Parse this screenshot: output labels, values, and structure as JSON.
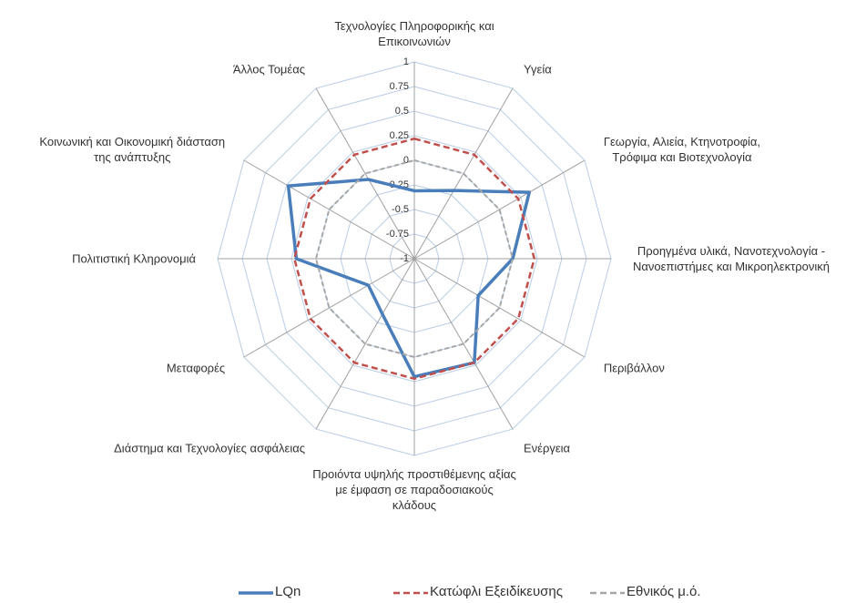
{
  "chart_data": {
    "type": "radar",
    "categories": [
      "Τεχνολογίες Πληροφορικής και\nΕπικοινωνιών",
      "Υγεία",
      "Γεωργία, Αλιεία, Κτηνοτροφία,\nΤρόφιμα και Βιοτεχνολογία",
      "Προηγμένα υλικά, Νανοτεχνολογία -\nΝανοεπιστήμες και Μικροηλεκτρονική",
      "Περιβάλλον",
      "Ενέργεια",
      "Προιόντα υψηλής προστιθέμενης αξίας\nμε έμφαση σε παραδοσιακούς\nκλάδους",
      "Διάστημα και Τεχνολογίες ασφάλειας",
      "Μεταφορές",
      "Πολιτιστική Κληρονομιά",
      "Κοινωνική και Οικονομική διάσταση\nτης ανάπτυξης",
      "Άλλος Τομέας"
    ],
    "series": [
      {
        "name": "LQn",
        "color": "#4a7ebb",
        "dash": "solid",
        "values": [
          -0.31,
          -0.2,
          0.35,
          0,
          -0.25,
          0.22,
          0.2,
          -0.35,
          -0.46,
          0.2,
          0.48,
          -0.07
        ]
      },
      {
        "name": "Κατώφλι Εξειδίκευσης",
        "color": "#c0504d",
        "dash": "dashed",
        "values": [
          0.22,
          0.22,
          0.22,
          0.22,
          0.22,
          0.22,
          0.22,
          0.22,
          0.22,
          0.22,
          0.22,
          0.22
        ]
      },
      {
        "name": "Εθνικός μ.ό.",
        "color": "#a6a6a6",
        "dash": "dashed",
        "values": [
          0,
          0,
          0,
          0,
          0,
          0,
          0,
          0,
          0,
          0,
          0,
          0
        ]
      }
    ],
    "ylim": [
      -1,
      1
    ],
    "yticks": [
      -1,
      -0.75,
      -0.5,
      -0.25,
      0,
      0.25,
      0.5,
      0.75,
      1
    ],
    "grid": true,
    "legend": "bottom"
  }
}
